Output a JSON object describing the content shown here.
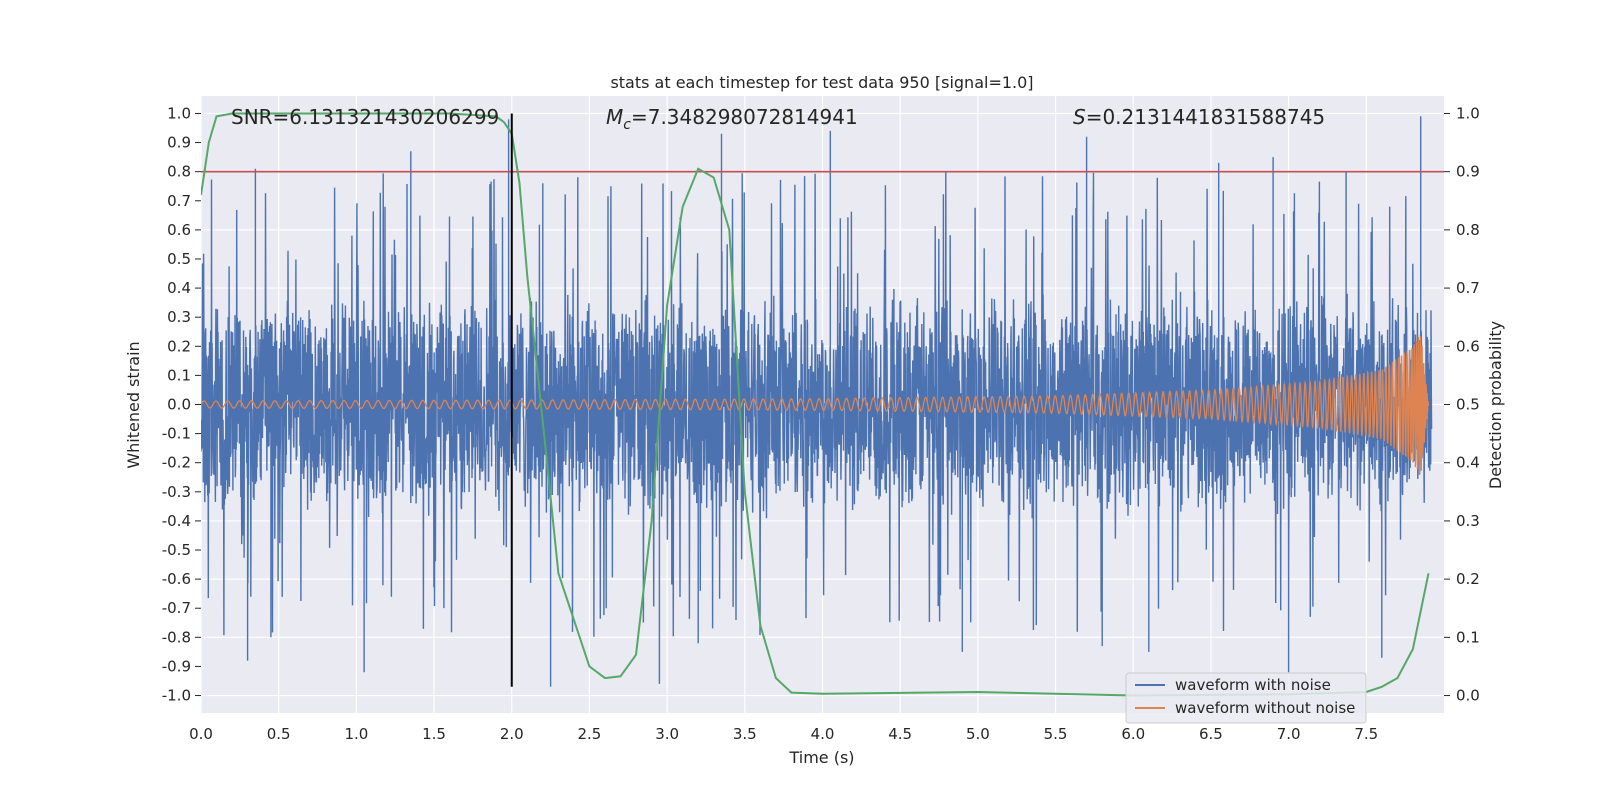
{
  "chart_data": {
    "type": "line",
    "title": "stats at each timestep for test data 950 [signal=1.0]",
    "xlabel": "Time (s)",
    "ylabel": "Whitened strain",
    "y2label": "Detection probability",
    "xlim": [
      0.0,
      8.0
    ],
    "ylim": [
      -1.06,
      1.06
    ],
    "y2lim": [
      -0.03,
      1.03
    ],
    "grid": true,
    "x_ticks": [
      "0.0",
      "0.5",
      "1.0",
      "1.5",
      "2.0",
      "2.5",
      "3.0",
      "3.5",
      "4.0",
      "4.5",
      "5.0",
      "5.5",
      "6.0",
      "6.5",
      "7.0",
      "7.5"
    ],
    "y_ticks": [
      "1.0",
      "0.9",
      "0.8",
      "0.7",
      "0.6",
      "0.5",
      "0.4",
      "0.3",
      "0.2",
      "0.1",
      "0.0",
      "-0.1",
      "-0.2",
      "-0.3",
      "-0.4",
      "-0.5",
      "-0.6",
      "-0.7",
      "-0.8",
      "-0.9",
      "-1.0"
    ],
    "y2_ticks": [
      "1.0",
      "0.9",
      "0.8",
      "0.7",
      "0.6",
      "0.5",
      "0.4",
      "0.3",
      "0.2",
      "0.1",
      "0.0"
    ],
    "annotations": {
      "snr": "SNR=6.131321430206299",
      "mc_symbol": "M",
      "mc_sub": "c",
      "mc_value": "=7.348298072814941",
      "s_symbol": "S",
      "s_value": "=0.2131441831588745"
    },
    "threshold": {
      "name": "detection threshold",
      "y2_value": 0.9,
      "color": "#c44e52"
    },
    "marker_line": {
      "name": "detection time",
      "x": 2.0,
      "y_range": [
        -0.97,
        1.0
      ],
      "color": "#000000"
    },
    "series": [
      {
        "name": "waveform with noise",
        "color": "#4c72b0",
        "axis": "left",
        "description": "noisy whitened strain, roughly +/-0.4 core envelope with spikes to +/-0.9",
        "envelope_upper": 0.4,
        "envelope_lower": -0.4,
        "peaks": [
          [
            0.35,
            0.81
          ],
          [
            1.35,
            0.87
          ],
          [
            1.98,
            0.98
          ],
          [
            2.2,
            0.76
          ],
          [
            3.35,
            0.93
          ],
          [
            4.05,
            0.94
          ],
          [
            5.7,
            0.92
          ],
          [
            6.55,
            0.83
          ],
          [
            6.9,
            0.85
          ],
          [
            7.37,
            0.8
          ],
          [
            7.85,
            0.99
          ]
        ],
        "troughs": [
          [
            0.3,
            -0.88
          ],
          [
            0.45,
            -0.8
          ],
          [
            1.05,
            -0.92
          ],
          [
            2.25,
            -0.97
          ],
          [
            2.95,
            -0.96
          ],
          [
            3.2,
            -0.82
          ],
          [
            4.9,
            -0.85
          ],
          [
            5.8,
            -0.83
          ],
          [
            6.1,
            -0.85
          ],
          [
            7.0,
            -0.92
          ],
          [
            7.6,
            -0.87
          ]
        ]
      },
      {
        "name": "waveform without noise",
        "color": "#dd8452",
        "axis": "left",
        "description": "chirp waveform with growing amplitude ending at merger near t=7.85 s",
        "amplitude_points": [
          [
            0.0,
            0.012
          ],
          [
            2.0,
            0.015
          ],
          [
            4.0,
            0.02
          ],
          [
            5.5,
            0.03
          ],
          [
            6.5,
            0.05
          ],
          [
            7.2,
            0.08
          ],
          [
            7.6,
            0.12
          ],
          [
            7.8,
            0.2
          ],
          [
            7.85,
            0.25
          ],
          [
            7.9,
            0.0
          ]
        ]
      },
      {
        "name": "detection probability",
        "color": "#55a868",
        "axis": "right",
        "x": [
          0.0,
          0.05,
          0.1,
          0.2,
          0.4,
          0.8,
          1.2,
          1.6,
          1.9,
          1.95,
          2.0,
          2.05,
          2.1,
          2.2,
          2.3,
          2.5,
          2.6,
          2.7,
          2.8,
          2.9,
          3.0,
          3.1,
          3.2,
          3.3,
          3.4,
          3.5,
          3.6,
          3.7,
          3.8,
          4.0,
          5.0,
          6.0,
          7.0,
          7.5,
          7.6,
          7.7,
          7.8,
          7.9
        ],
        "values": [
          0.86,
          0.95,
          0.995,
          1.0,
          1.0,
          1.0,
          1.0,
          1.0,
          0.995,
          0.985,
          0.965,
          0.88,
          0.72,
          0.47,
          0.21,
          0.05,
          0.03,
          0.033,
          0.07,
          0.3,
          0.67,
          0.84,
          0.905,
          0.89,
          0.8,
          0.35,
          0.12,
          0.03,
          0.005,
          0.003,
          0.006,
          0.0,
          0.002,
          0.006,
          0.015,
          0.03,
          0.08,
          0.21
        ]
      }
    ],
    "legend": {
      "position": "lower-right",
      "entries": [
        "waveform with noise",
        "waveform without noise"
      ]
    }
  }
}
